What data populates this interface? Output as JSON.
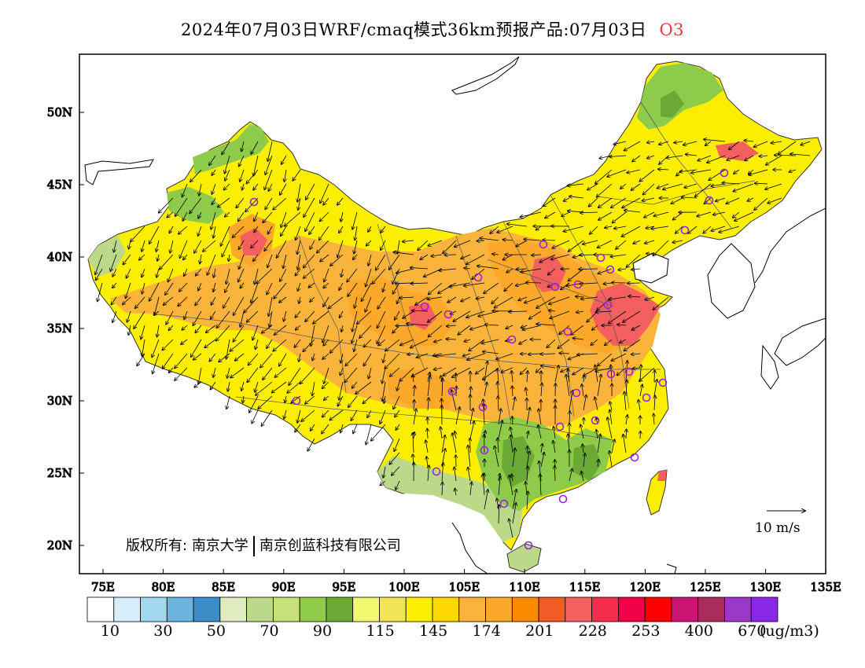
{
  "title": {
    "text": "2024年07月03日WRF/cmaq模式36km预报产品:07月03日",
    "species": "O3",
    "species_color": "#e03a3a"
  },
  "axes": {
    "x_ticks": [
      "75E",
      "80E",
      "85E",
      "90E",
      "95E",
      "100E",
      "105E",
      "110E",
      "115E",
      "120E",
      "125E",
      "130E",
      "135E"
    ],
    "y_ticks": [
      "20N",
      "25N",
      "30N",
      "35N",
      "40N",
      "45N",
      "50N"
    ]
  },
  "copyright": {
    "prefix": "版权所有:",
    "org1": "南京大学",
    "org2": "南京创蓝科技有限公司"
  },
  "wind_reference": {
    "label": "10 m/s"
  },
  "colorbar": {
    "unit": "(ug/m3)",
    "colors": [
      "#ffffff",
      "#d6eefa",
      "#a0d8f2",
      "#6bb4e0",
      "#3e8cc8",
      "#e0ecc0",
      "#bcd98a",
      "#c8e07a",
      "#8ecb4a",
      "#6aaa34",
      "#f2f870",
      "#f2e454",
      "#fcee00",
      "#fcd800",
      "#fab43c",
      "#fca82a",
      "#fc8a00",
      "#f25a28",
      "#f46060",
      "#f42c4c",
      "#f00048",
      "#fc0000",
      "#cc1474",
      "#aa2c5c",
      "#9a38c8",
      "#8a28e8"
    ],
    "labels": [
      "10",
      "30",
      "50",
      "70",
      "90",
      "115",
      "145",
      "174",
      "201",
      "228",
      "253",
      "400",
      "670"
    ]
  },
  "city_markers_color": "#9b22d8",
  "wind_arrow_color": "#000000",
  "map_colors": {
    "land_base": "#fcee00",
    "orange": "#fab43c",
    "dark_orange": "#fca82a",
    "red": "#f46060",
    "light_green": "#bcd98a",
    "green": "#8ecb4a",
    "dark_green": "#6aaa34",
    "pale_yellow": "#f2e454"
  }
}
